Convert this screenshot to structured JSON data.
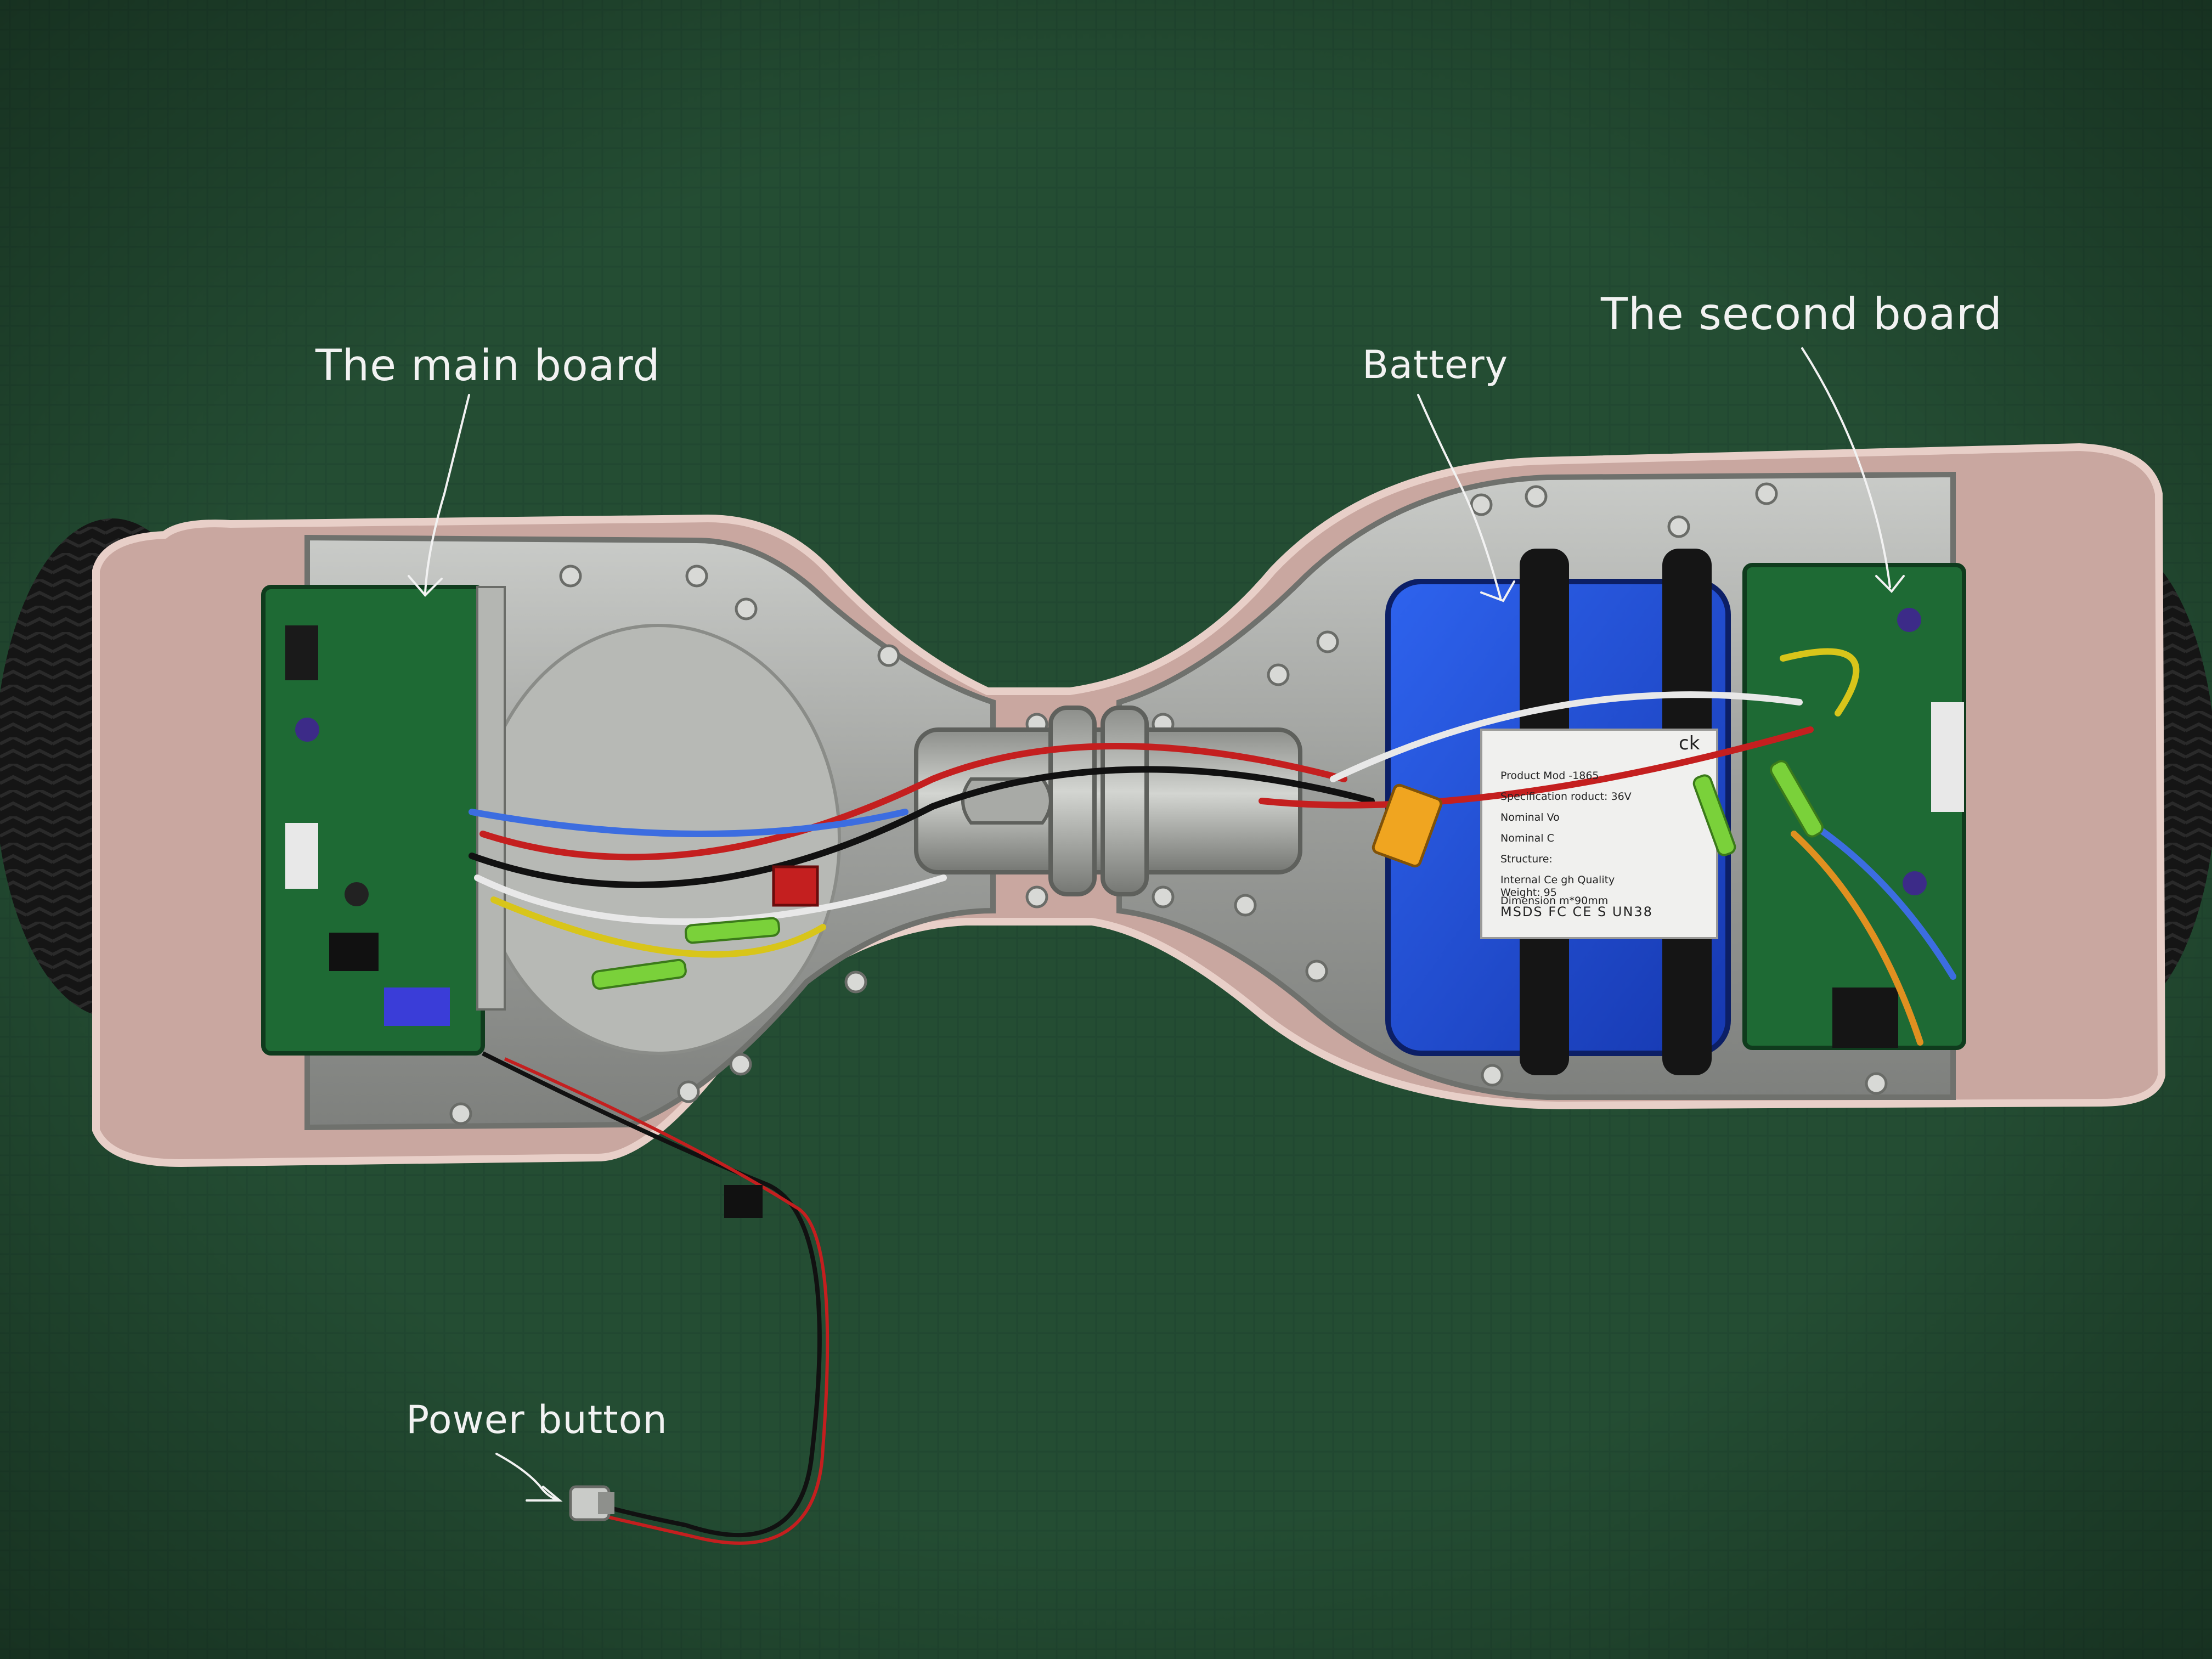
{
  "annotations": {
    "main_board": "The main board",
    "battery": "Battery",
    "second_board": "The second board",
    "power_button": "Power button"
  },
  "battery_pack_label": {
    "heading": "ck",
    "lines": [
      "Product Mod  -1865",
      "Specification  roduct: 36V",
      "Nominal Vo",
      "Nominal C",
      "Structure:",
      "Internal Ce  gh Quality",
      "Dimension  m*90mm",
      "Weight: 95"
    ],
    "footer": "MSDS FC CE  S UN38"
  },
  "colors": {
    "background": "#244d33",
    "shell": "#c9a7a0",
    "aluminum": "#a3a5a2",
    "pcb": "#1e6a34",
    "battery": "#1f4fd6",
    "annotation_text": "#f2f2f2"
  }
}
